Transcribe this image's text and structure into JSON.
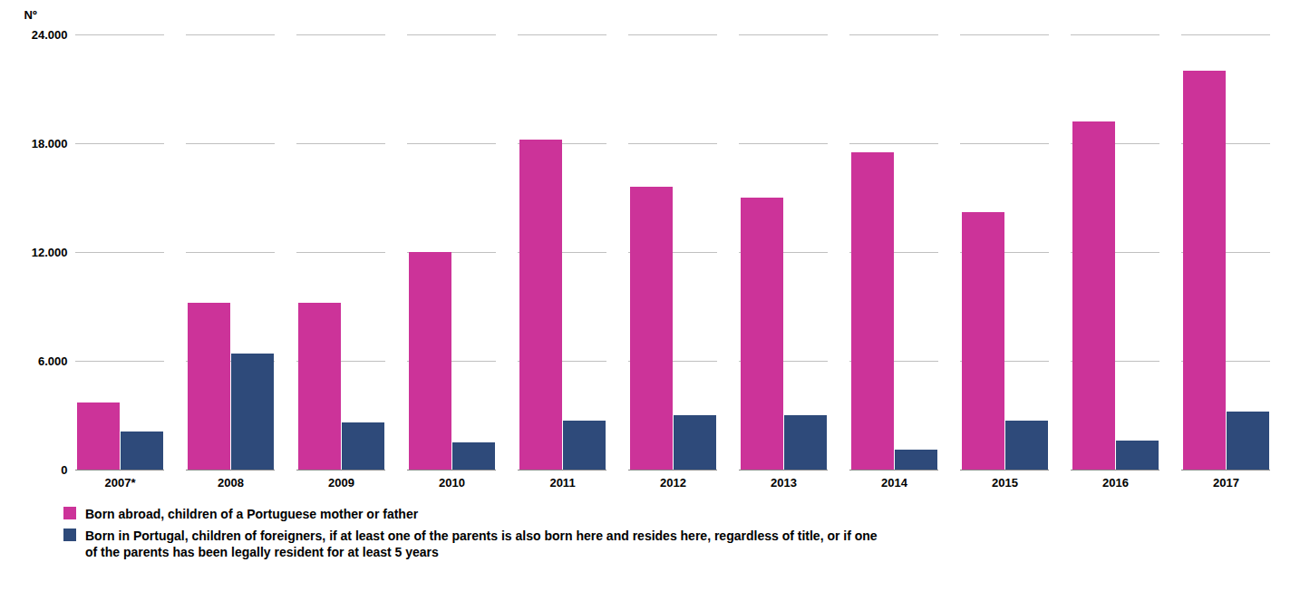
{
  "chart_data": {
    "type": "bar",
    "categories": [
      "2007*",
      "2008",
      "2009",
      "2010",
      "2011",
      "2012",
      "2013",
      "2014",
      "2015",
      "2016",
      "2017"
    ],
    "series": [
      {
        "name": "Born abroad, children of a Portuguese mother or father",
        "color": "#cc3399",
        "values": [
          3700,
          9200,
          9200,
          12000,
          18200,
          15600,
          15000,
          17500,
          14200,
          19200,
          22000
        ]
      },
      {
        "name": "Born in Portugal, children of foreigners, if at least one of the parents is also born here and resides here, regardless of title, or if one\nof the parents has been legally resident for at least 5 years",
        "color": "#2e4a7a",
        "values": [
          2100,
          6400,
          2600,
          1500,
          2700,
          3000,
          3000,
          1100,
          2700,
          1600,
          3200
        ]
      }
    ],
    "ylabel": "Nº",
    "ylim": [
      0,
      24000
    ],
    "yticks": [
      0,
      {
        "value": 6000,
        "label": "6.000"
      },
      {
        "value": 12000,
        "label": "12.000"
      },
      {
        "value": 18000,
        "label": "18.000"
      },
      {
        "value": 24000,
        "label": "24.000"
      }
    ],
    "grid": true,
    "legend": "bottom"
  }
}
